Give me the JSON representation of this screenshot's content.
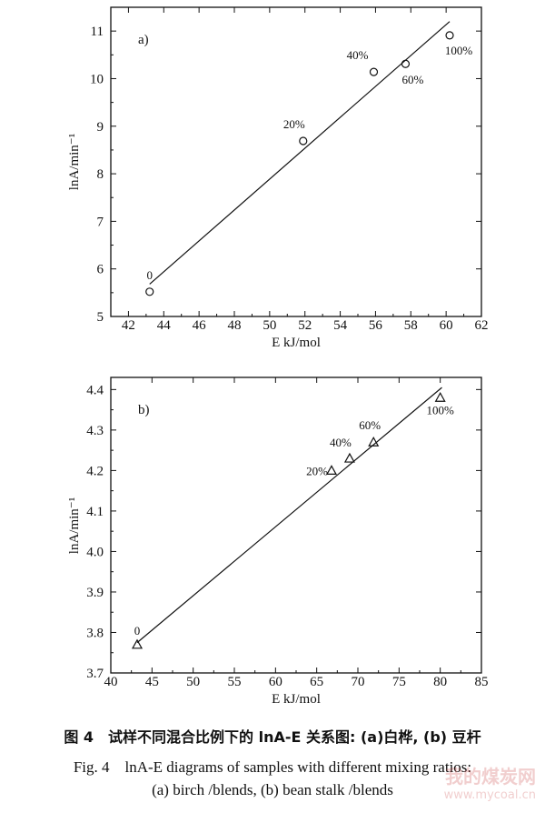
{
  "chart_data": [
    {
      "type": "scatter",
      "panel_label": "a)",
      "xlabel": "E kJ/mol",
      "ylabel": "lnA/min⁻¹",
      "xlim": [
        41,
        62
      ],
      "ylim": [
        5,
        11.5
      ],
      "xticks": [
        42,
        44,
        46,
        48,
        50,
        52,
        54,
        56,
        58,
        60,
        62
      ],
      "yticks": [
        5,
        6,
        7,
        8,
        9,
        10,
        11
      ],
      "marker": "circle",
      "points": [
        {
          "x": 43.2,
          "y": 5.52,
          "label": "0"
        },
        {
          "x": 51.9,
          "y": 8.69,
          "label": "20%"
        },
        {
          "x": 55.9,
          "y": 10.14,
          "label": "40%"
        },
        {
          "x": 57.7,
          "y": 10.31,
          "label": "60%"
        },
        {
          "x": 60.2,
          "y": 10.91,
          "label": "100%"
        }
      ],
      "fit_line": [
        [
          43.2,
          5.68
        ],
        [
          60.2,
          11.2
        ]
      ]
    },
    {
      "type": "scatter",
      "panel_label": "b)",
      "xlabel": "E kJ/mol",
      "ylabel": "lnA/min⁻¹",
      "xlim": [
        40,
        85
      ],
      "ylim": [
        3.7,
        4.43
      ],
      "xticks": [
        40,
        45,
        50,
        55,
        60,
        65,
        70,
        75,
        80,
        85
      ],
      "yticks": [
        3.7,
        3.8,
        3.9,
        4.0,
        4.1,
        4.2,
        4.3,
        4.4
      ],
      "marker": "triangle",
      "points": [
        {
          "x": 43.2,
          "y": 3.77,
          "label": "0"
        },
        {
          "x": 66.8,
          "y": 4.2,
          "label": "20%"
        },
        {
          "x": 69.0,
          "y": 4.23,
          "label": "40%"
        },
        {
          "x": 71.9,
          "y": 4.27,
          "label": "60%"
        },
        {
          "x": 80.0,
          "y": 4.38,
          "label": "100%"
        }
      ],
      "fit_line": [
        [
          43.2,
          3.775
        ],
        [
          80.2,
          4.405
        ]
      ]
    }
  ],
  "caption": {
    "cn": "图 4　试样不同混合比例下的 lnA-E 关系图: (a)白桦, (b) 豆杆",
    "en_line1": "Fig. 4　lnA-E diagrams of samples with different mixing ratios:",
    "en_line2": "(a) birch /blends, (b) bean stalk /blends"
  },
  "watermark": {
    "cn": "我的煤炭网",
    "url": "www.mycoal.cn"
  }
}
